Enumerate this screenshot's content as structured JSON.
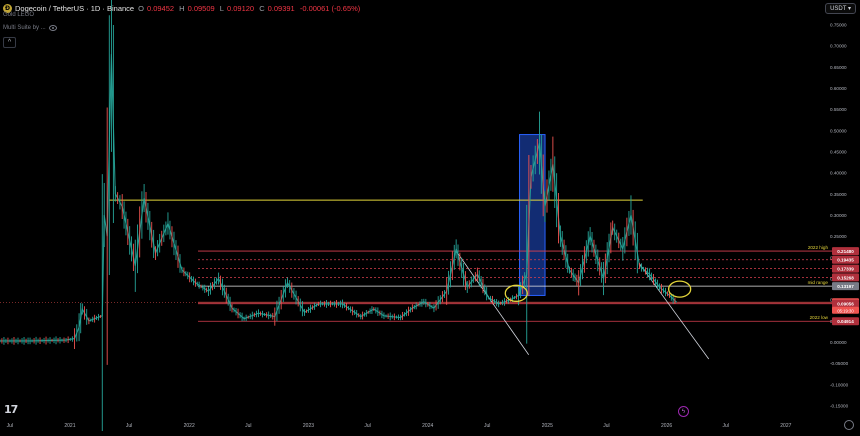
{
  "header": {
    "symbol": "Dogecoin / TetherUS · 1D · Binance",
    "open_label": "O",
    "open": "0.09452",
    "high_label": "H",
    "high": "0.09509",
    "low_label": "L",
    "low": "0.09120",
    "close_label": "C",
    "close": "0.09391",
    "change": "-0.00061 (-0.65%)",
    "indicator_1": "Gold LEGO",
    "indicator_2": "Multi Suite by ...",
    "currency": "USDT"
  },
  "colors": {
    "up": "#26a69a",
    "down": "#ef5350",
    "yellow": "#e4d53b",
    "red_level": "#d9404f",
    "box": "#2962ff"
  },
  "chart_data": {
    "type": "line",
    "title": "",
    "xlabel": "",
    "ylabel": "",
    "ylim": [
      -0.17,
      0.77
    ],
    "x_ticks": [
      "Jul",
      "2021",
      "Jul",
      "2022",
      "Jul",
      "2023",
      "Jul",
      "2024",
      "Jul",
      "2025",
      "Jul",
      "2026",
      "Jul",
      "2027"
    ],
    "y_ticks": [
      "0.75000",
      "0.70000",
      "0.65000",
      "0.60000",
      "0.55000",
      "0.50000",
      "0.45000",
      "0.40000",
      "0.35000",
      "0.30000",
      "0.25000",
      "0.20000",
      "0.15000",
      "0.10000",
      "0.05000",
      "0.00000",
      "-0.05000",
      "-0.10000",
      "-0.15000"
    ],
    "series": [
      {
        "values": [
          [
            "2020-05-01",
            0.0026
          ],
          [
            "2020-09-01",
            0.0027
          ],
          [
            "2020-12-20",
            0.0045
          ],
          [
            "2021-01-15",
            0.008
          ],
          [
            "2021-01-29",
            0.035
          ],
          [
            "2021-02-08",
            0.078
          ],
          [
            "2021-02-28",
            0.05
          ],
          [
            "2021-04-10",
            0.062
          ],
          [
            "2021-04-16",
            0.3
          ],
          [
            "2021-04-25",
            0.25
          ],
          [
            "2021-05-08",
            0.68
          ],
          [
            "2021-05-20",
            0.35
          ],
          [
            "2021-06-10",
            0.32
          ],
          [
            "2021-07-20",
            0.18
          ],
          [
            "2021-08-16",
            0.34
          ],
          [
            "2021-09-20",
            0.21
          ],
          [
            "2021-10-28",
            0.28
          ],
          [
            "2021-12-10",
            0.17
          ],
          [
            "2022-01-20",
            0.14
          ],
          [
            "2022-03-01",
            0.12
          ],
          [
            "2022-04-01",
            0.15
          ],
          [
            "2022-05-12",
            0.08
          ],
          [
            "2022-06-18",
            0.055
          ],
          [
            "2022-08-01",
            0.068
          ],
          [
            "2022-09-20",
            0.06
          ],
          [
            "2022-10-29",
            0.14
          ],
          [
            "2022-12-20",
            0.07
          ],
          [
            "2023-02-01",
            0.09
          ],
          [
            "2023-04-15",
            0.09
          ],
          [
            "2023-06-10",
            0.06
          ],
          [
            "2023-07-20",
            0.078
          ],
          [
            "2023-08-20",
            0.062
          ],
          [
            "2023-10-10",
            0.058
          ],
          [
            "2023-11-15",
            0.08
          ],
          [
            "2023-12-20",
            0.095
          ],
          [
            "2024-01-20",
            0.08
          ],
          [
            "2024-02-28",
            0.12
          ],
          [
            "2024-03-28",
            0.22
          ],
          [
            "2024-05-01",
            0.13
          ],
          [
            "2024-06-01",
            0.16
          ],
          [
            "2024-07-05",
            0.105
          ],
          [
            "2024-08-05",
            0.09
          ],
          [
            "2024-09-10",
            0.1
          ],
          [
            "2024-10-05",
            0.11
          ],
          [
            "2024-10-30",
            0.16
          ],
          [
            "2024-11-12",
            0.39
          ],
          [
            "2024-12-08",
            0.47
          ],
          [
            "2024-12-25",
            0.32
          ],
          [
            "2025-01-18",
            0.42
          ],
          [
            "2025-02-10",
            0.25
          ],
          [
            "2025-03-10",
            0.17
          ],
          [
            "2025-04-07",
            0.14
          ],
          [
            "2025-05-12",
            0.25
          ],
          [
            "2025-06-22",
            0.15
          ],
          [
            "2025-07-20",
            0.27
          ],
          [
            "2025-08-20",
            0.22
          ],
          [
            "2025-09-14",
            0.3
          ],
          [
            "2025-10-10",
            0.18
          ],
          [
            "2025-11-10",
            0.16
          ],
          [
            "2025-12-10",
            0.13
          ],
          [
            "2026-01-10",
            0.11
          ],
          [
            "2026-02-01",
            0.09391
          ]
        ]
      }
    ],
    "price_levels": [
      {
        "price": 0.2148,
        "label": "2022 high",
        "color": "#d9404f"
      },
      {
        "price": 0.19435,
        "color": "#d9404f"
      },
      {
        "price": 0.17339,
        "color": "#d9404f"
      },
      {
        "price": 0.15268,
        "color": "#d9404f"
      },
      {
        "price": 0.13197,
        "label": "mid range",
        "color": "#e6e6e6"
      },
      {
        "price": 0.09391,
        "color": "#ef5350"
      },
      {
        "price": 0.09056,
        "color": "#d9404f"
      },
      {
        "price": 0.04914,
        "label": "2022 low",
        "color": "#d9404f"
      }
    ],
    "price_tags": [
      "0.21480",
      "0.19435",
      "0.17339",
      "0.15268",
      "0.13197",
      "0.09391",
      "0.09056",
      "0.04914"
    ],
    "countdown": "05:19:30",
    "annotations": {
      "resistance_yellow": {
        "price": 0.335,
        "from": "2021-05-01",
        "to": "2025-10-20"
      },
      "trendlines": [
        {
          "from": [
            "2024-03-28",
            0.215
          ],
          "to": [
            "2024-11-05",
            -0.03
          ]
        },
        {
          "from": [
            "2025-10-10",
            0.185
          ],
          "to": [
            "2026-05-10",
            -0.04
          ]
        }
      ],
      "blue_box": {
        "from": "2024-10-08",
        "to": "2024-12-25",
        "top": 0.49,
        "bottom": 0.11
      },
      "circles": [
        {
          "at": [
            "2024-09-28",
            0.115
          ]
        },
        {
          "at": [
            "2026-02-10",
            0.125
          ]
        }
      ]
    }
  }
}
